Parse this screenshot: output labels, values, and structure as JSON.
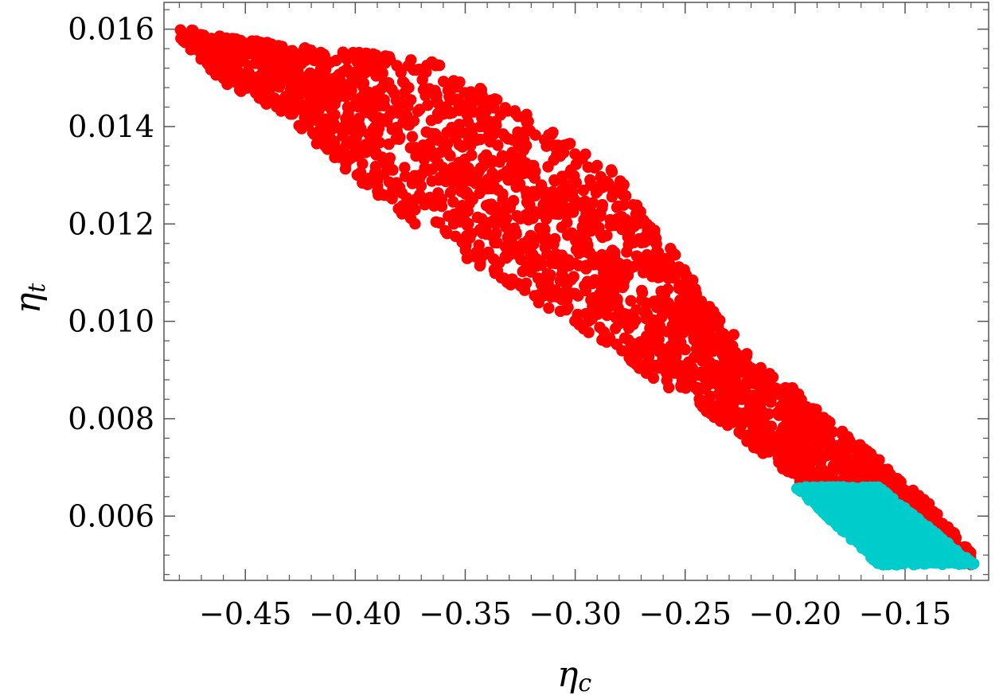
{
  "chart_data": {
    "type": "scatter",
    "title": "",
    "xlabel": {
      "symbol": "η",
      "subscript": "c"
    },
    "ylabel": {
      "symbol": "η",
      "subscript": "t"
    },
    "xlim": [
      -0.487,
      -0.112
    ],
    "ylim": [
      0.00468,
      0.01655
    ],
    "x_ticks": [
      -0.45,
      -0.4,
      -0.35,
      -0.3,
      -0.25,
      -0.2,
      -0.15
    ],
    "x_tick_labels": [
      "−0.45",
      "−0.40",
      "−0.35",
      "−0.30",
      "−0.25",
      "−0.20",
      "−0.15"
    ],
    "y_ticks": [
      0.006,
      0.008,
      0.01,
      0.012,
      0.014,
      0.016
    ],
    "y_tick_labels": [
      "0.006",
      "0.008",
      "0.010",
      "0.012",
      "0.014",
      "0.016"
    ],
    "grid": false,
    "legend": "none",
    "series": [
      {
        "color": "#ff0000",
        "region": "band",
        "seed": 7,
        "count": 2600,
        "upper_edge": [
          [
            -0.48,
            0.01602
          ],
          [
            -0.45,
            0.0158
          ],
          [
            -0.43,
            0.01565
          ],
          [
            -0.41,
            0.01555
          ],
          [
            -0.37,
            0.01545
          ],
          [
            -0.34,
            0.0148
          ],
          [
            -0.32,
            0.0142
          ],
          [
            -0.3,
            0.0136
          ],
          [
            -0.28,
            0.013
          ],
          [
            -0.26,
            0.0118
          ],
          [
            -0.24,
            0.0104
          ],
          [
            -0.22,
            0.0093
          ],
          [
            -0.2,
            0.0086
          ],
          [
            -0.18,
            0.0078
          ],
          [
            -0.16,
            0.0071
          ],
          [
            -0.14,
            0.0063
          ],
          [
            -0.12,
            0.00525
          ]
        ],
        "lower_edge": [
          [
            -0.48,
            0.0158
          ],
          [
            -0.46,
            0.0149
          ],
          [
            -0.43,
            0.0142
          ],
          [
            -0.41,
            0.0133
          ],
          [
            -0.39,
            0.0126
          ],
          [
            -0.37,
            0.0119
          ],
          [
            -0.35,
            0.0113
          ],
          [
            -0.33,
            0.0107
          ],
          [
            -0.31,
            0.0102
          ],
          [
            -0.29,
            0.0096
          ],
          [
            -0.27,
            0.009
          ],
          [
            -0.25,
            0.0084
          ],
          [
            -0.23,
            0.0078
          ],
          [
            -0.21,
            0.0071
          ],
          [
            -0.19,
            0.0064
          ],
          [
            -0.17,
            0.0057
          ],
          [
            -0.15,
            0.0052
          ],
          [
            -0.12,
            0.005
          ]
        ]
      },
      {
        "color": "#00cccc",
        "region": "parallelogram",
        "seed": 11,
        "count": 1400,
        "vertices": [
          [
            -0.2,
            0.0066
          ],
          [
            -0.162,
            0.0066
          ],
          [
            -0.118,
            0.005
          ],
          [
            -0.162,
            0.005
          ]
        ]
      }
    ]
  }
}
